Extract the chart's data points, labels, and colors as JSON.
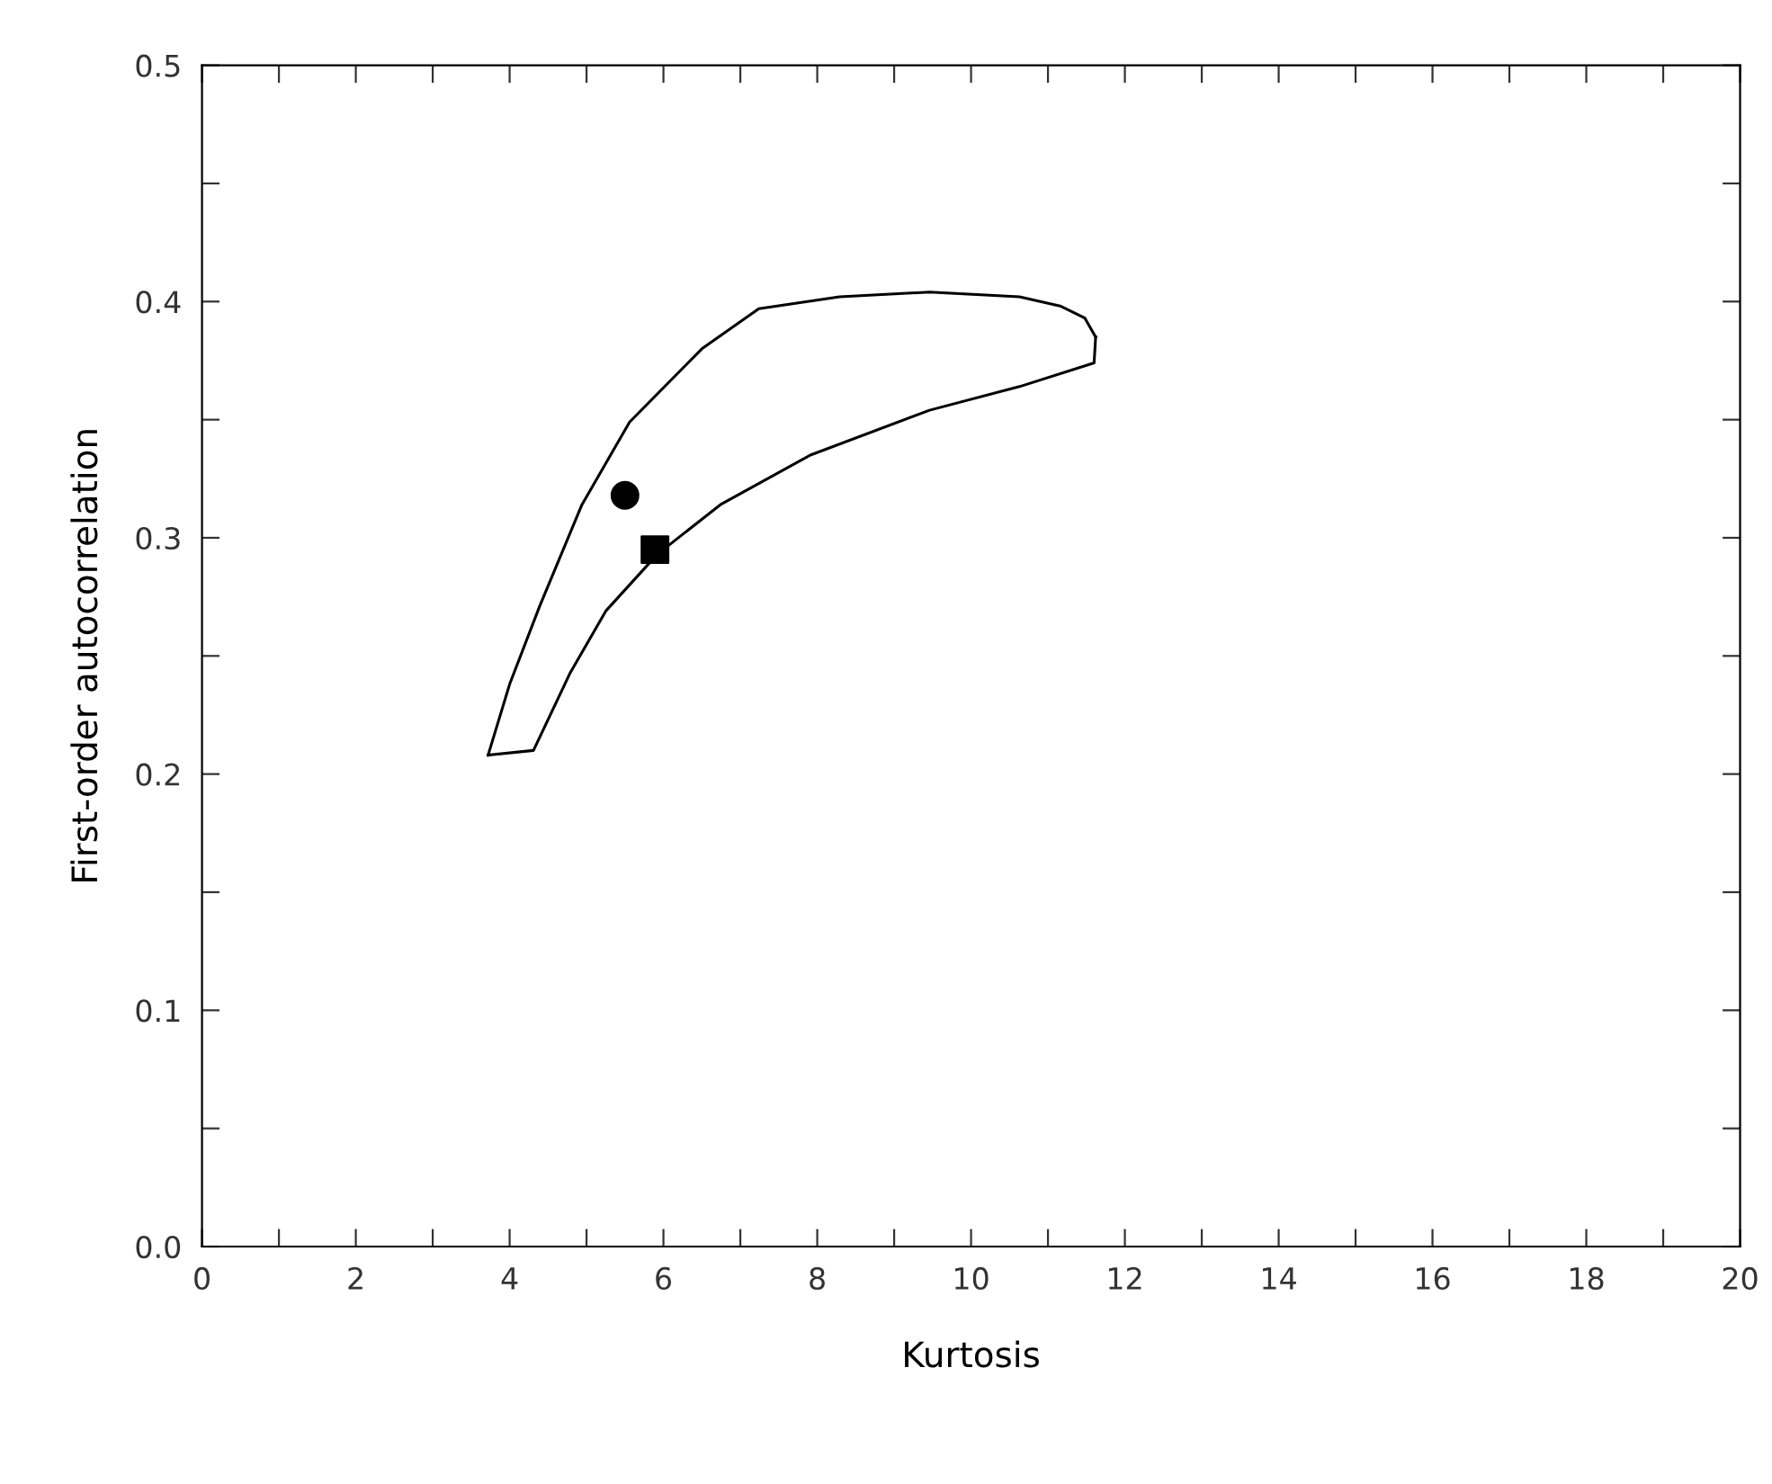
{
  "chart_data": {
    "type": "line",
    "xlabel": "Kurtosis",
    "ylabel": "First-order autocorrelation",
    "xlim": [
      0,
      20
    ],
    "ylim": [
      0.0,
      0.5
    ],
    "xticks": [
      0,
      {
        "value": 1,
        "label": null
      },
      2,
      {
        "value": 3,
        "label": null
      },
      4,
      {
        "value": 5,
        "label": null
      },
      6,
      {
        "value": 7,
        "label": null
      },
      8,
      {
        "value": 9,
        "label": null
      },
      10,
      {
        "value": 11,
        "label": null
      },
      12,
      {
        "value": 13,
        "label": null
      },
      14,
      {
        "value": 15,
        "label": null
      },
      16,
      {
        "value": 17,
        "label": null
      },
      18,
      {
        "value": 19,
        "label": null
      },
      20
    ],
    "yticks": [
      {
        "value": 0.0,
        "label": "0.0"
      },
      {
        "value": 0.05,
        "label": null
      },
      0.1,
      {
        "value": 0.15,
        "label": null
      },
      0.2,
      {
        "value": 0.25,
        "label": null
      },
      0.3,
      {
        "value": 0.35,
        "label": null
      },
      0.4,
      {
        "value": 0.45,
        "label": null
      },
      0.5
    ],
    "grid": false,
    "legend": false,
    "series": [
      {
        "color": "#000000",
        "marker": "none",
        "line_style": "solid",
        "x": [
          3.72,
          4.31,
          4.79,
          5.25,
          5.92,
          6.74,
          7.91,
          9.46,
          10.63,
          11.6,
          11.62
        ],
        "values": [
          0.208,
          0.21,
          0.243,
          0.269,
          0.293,
          0.314,
          0.335,
          0.354,
          0.364,
          0.374,
          0.385
        ]
      },
      {
        "color": "#000000",
        "marker": "none",
        "line_style": "solid",
        "x": [
          3.72,
          4.0,
          4.39,
          4.94,
          5.56,
          6.5,
          7.24,
          8.29,
          9.46,
          10.63,
          11.17,
          11.48,
          11.62
        ],
        "values": [
          0.208,
          0.238,
          0.271,
          0.314,
          0.349,
          0.38,
          0.397,
          0.402,
          0.404,
          0.402,
          0.398,
          0.393,
          0.385
        ]
      },
      {
        "type": "scatter",
        "color": "#000000",
        "marker": "circle",
        "x": [
          5.5
        ],
        "values": [
          0.318
        ]
      },
      {
        "type": "scatter",
        "color": "#000000",
        "marker": "square",
        "x": [
          5.89
        ],
        "values": [
          0.295
        ]
      }
    ]
  }
}
